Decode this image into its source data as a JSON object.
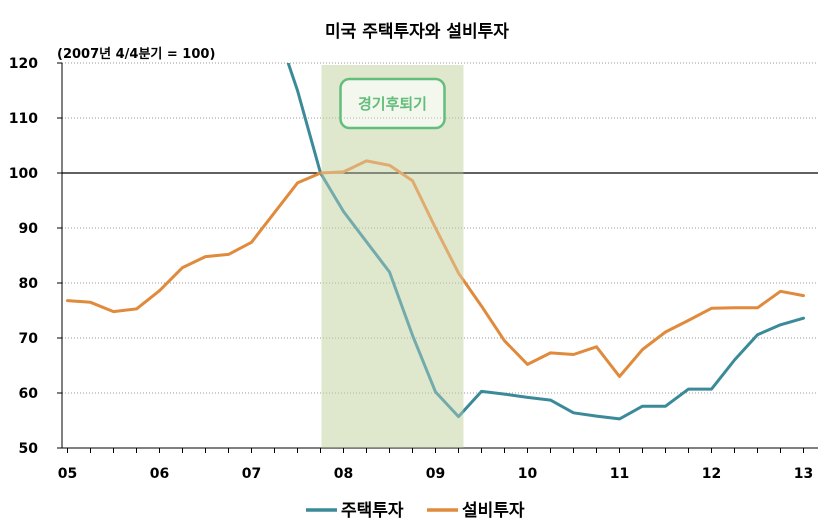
{
  "chart_data": {
    "type": "line",
    "title": "미국 주택투자와 설비투자",
    "subtitle": "(2007년 4/4분기 = 100)",
    "ylim": [
      50,
      120
    ],
    "yticks": [
      50,
      60,
      70,
      80,
      90,
      100,
      110,
      120
    ],
    "reference_line": 100,
    "x_labels": [
      "05",
      "06",
      "07",
      "08",
      "09",
      "10",
      "11",
      "12",
      "13"
    ],
    "quarters": [
      "05Q1",
      "05Q2",
      "05Q3",
      "05Q4",
      "06Q1",
      "06Q2",
      "06Q3",
      "06Q4",
      "07Q1",
      "07Q2",
      "07Q3",
      "07Q4",
      "08Q1",
      "08Q2",
      "08Q3",
      "08Q4",
      "09Q1",
      "09Q2",
      "09Q3",
      "09Q4",
      "10Q1",
      "10Q2",
      "10Q3",
      "10Q4",
      "11Q1",
      "11Q2",
      "11Q3",
      "11Q4",
      "12Q1",
      "12Q2",
      "12Q3",
      "12Q4",
      "13Q1"
    ],
    "recession": {
      "label": "경기후퇴기",
      "start": "07Q4",
      "end": "09Q2"
    },
    "series": [
      {
        "name": "주택투자",
        "color": "#3a8a9a",
        "values": [
          null,
          null,
          null,
          null,
          null,
          null,
          null,
          null,
          null,
          null,
          115,
          100,
          93,
          87.5,
          82,
          70.5,
          60.2,
          55.7,
          60.3,
          59.8,
          59.2,
          58.7,
          56.4,
          55.8,
          55.3,
          57.6,
          57.6,
          60.7,
          60.7,
          66,
          70.6,
          72.4,
          73.6
        ]
      },
      {
        "name": "설비투자",
        "color": "#e08a3c",
        "values": [
          76.8,
          76.5,
          74.8,
          75.3,
          78.6,
          82.8,
          84.8,
          85.2,
          87.4,
          92.8,
          98.2,
          100,
          100.2,
          102.2,
          101.4,
          98.6,
          90,
          81.8,
          75.8,
          69.5,
          65.2,
          67.3,
          67,
          68.4,
          63,
          67.9,
          71.1,
          73.2,
          75.4,
          75.5,
          75.5,
          78.5,
          77.7
        ]
      }
    ]
  }
}
